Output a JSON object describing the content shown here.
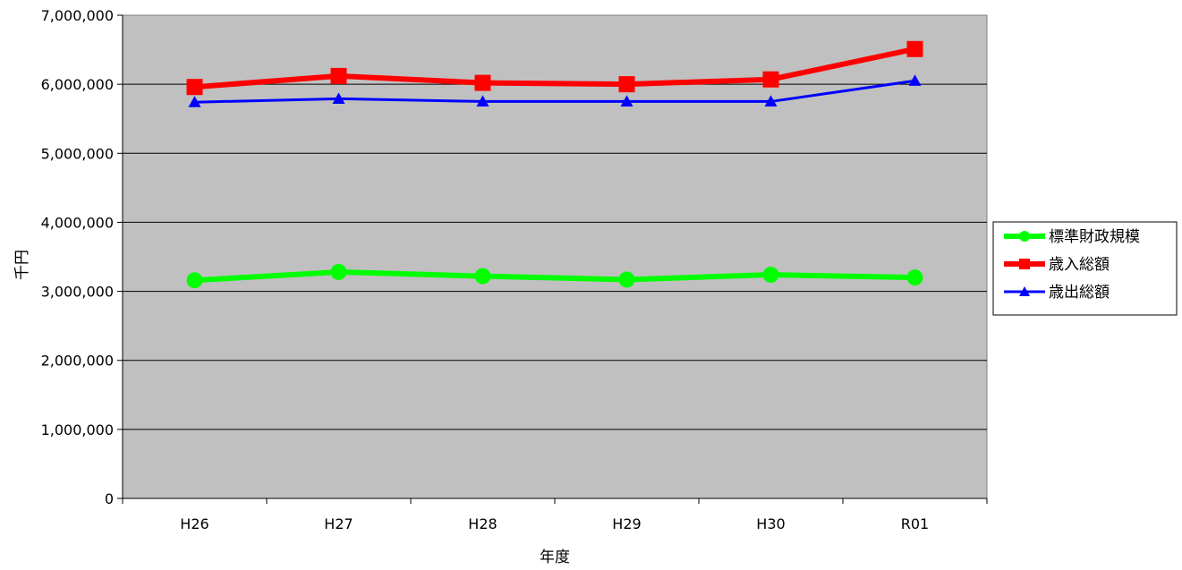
{
  "chart_data": {
    "type": "line",
    "title": "",
    "xlabel": "年度",
    "ylabel": "千円",
    "categories": [
      "H26",
      "H27",
      "H28",
      "H29",
      "H30",
      "R01"
    ],
    "ylim": [
      0,
      7000000
    ],
    "yticks": [
      0,
      1000000,
      2000000,
      3000000,
      4000000,
      5000000,
      6000000,
      7000000
    ],
    "ytick_labels": [
      "0",
      "1,000,000",
      "2,000,000",
      "3,000,000",
      "4,000,000",
      "5,000,000",
      "6,000,000",
      "7,000,000"
    ],
    "grid": true,
    "plot_background": "#c0c0c0",
    "legend_position": "right",
    "series": [
      {
        "name": "標準財政規模",
        "color": "#00ff00",
        "marker": "circle",
        "values": [
          3160000,
          3280000,
          3220000,
          3170000,
          3240000,
          3200000
        ]
      },
      {
        "name": "歳入総額",
        "color": "#ff0000",
        "marker": "square",
        "values": [
          5960000,
          6120000,
          6020000,
          6000000,
          6070000,
          6510000
        ]
      },
      {
        "name": "歳出総額",
        "color": "#0000ff",
        "marker": "triangle",
        "values": [
          5740000,
          5790000,
          5750000,
          5750000,
          5750000,
          6050000
        ]
      }
    ]
  }
}
